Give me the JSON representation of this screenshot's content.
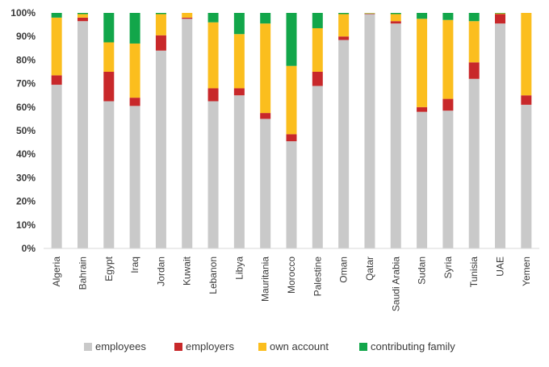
{
  "chart_data": {
    "type": "bar",
    "stacked": true,
    "title": "",
    "xlabel": "",
    "ylabel": "",
    "ylim": [
      0,
      100
    ],
    "ytick_suffix": "%",
    "yticks": [
      0,
      10,
      20,
      30,
      40,
      50,
      60,
      70,
      80,
      90,
      100
    ],
    "grid": false,
    "legend_position": "bottom",
    "categories": [
      "Algeria",
      "Bahrain",
      "Egypt",
      "Iraq",
      "Jordan",
      "Kuwait",
      "Lebanon",
      "Libya",
      "Mauritania",
      "Morocco",
      "Palestine",
      "Oman",
      "Qatar",
      "Saudi Arabia",
      "Sudan",
      "Syria",
      "Tunisia",
      "UAE",
      "Yemen"
    ],
    "series": [
      {
        "name": "employees",
        "color": "#c9c9c9",
        "values": [
          69.5,
          96.5,
          62.5,
          60.5,
          84,
          97.5,
          62.5,
          65,
          55,
          45.5,
          69,
          88.5,
          99.5,
          95.5,
          58,
          58.5,
          72,
          95.5,
          61
        ]
      },
      {
        "name": "employers",
        "color": "#c8282a",
        "values": [
          4,
          1.5,
          12.5,
          3.5,
          6.5,
          0.5,
          5.5,
          3,
          2.5,
          3,
          6,
          1.5,
          0.2,
          1,
          2,
          5,
          7,
          4,
          4
        ]
      },
      {
        "name": "own account",
        "color": "#fbbe1e",
        "values": [
          24.5,
          1.5,
          12.5,
          23,
          9,
          2,
          28,
          23,
          38,
          29,
          18.5,
          9.5,
          0.2,
          3,
          37.5,
          33.5,
          17.5,
          0.3,
          35
        ]
      },
      {
        "name": "contributing family",
        "color": "#12a64a",
        "values": [
          2,
          0.5,
          12.5,
          13,
          0.5,
          0,
          4,
          9,
          4.5,
          22.5,
          6.5,
          0.5,
          0.1,
          0.5,
          2.5,
          3,
          3.5,
          0.2,
          0
        ]
      }
    ]
  }
}
